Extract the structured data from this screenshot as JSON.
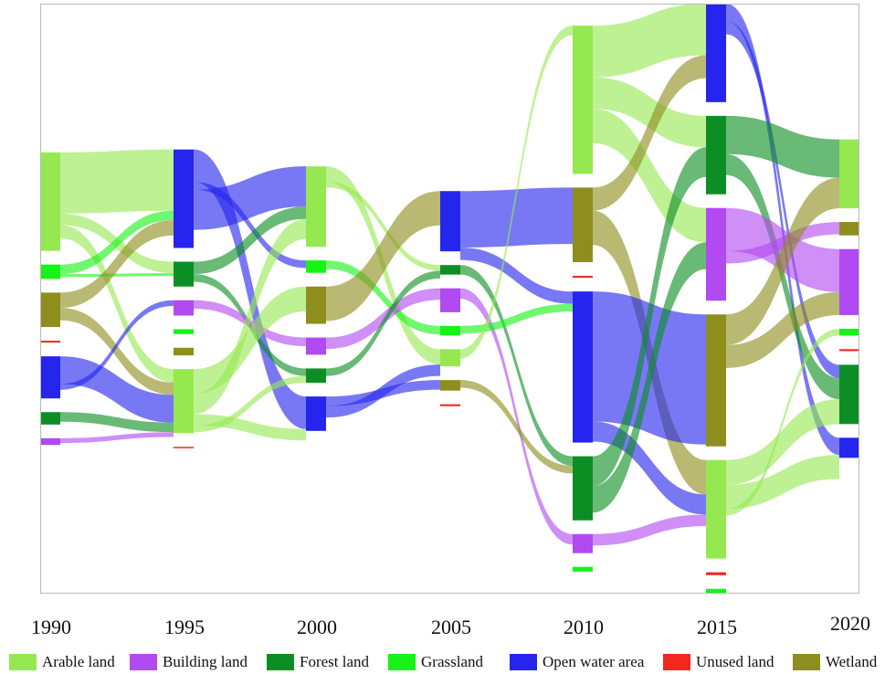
{
  "chart_data": {
    "type": "sankey",
    "years": [
      "1990",
      "1995",
      "2000",
      "2005",
      "2010",
      "2015",
      "2020"
    ],
    "categories": [
      {
        "key": "arable",
        "name": "Arable land",
        "color": "#96e850"
      },
      {
        "key": "building",
        "name": "Building land",
        "color": "#b14af0"
      },
      {
        "key": "forest",
        "name": "Forest land",
        "color": "#0d8e24"
      },
      {
        "key": "grass",
        "name": "Grassland",
        "color": "#17f317"
      },
      {
        "key": "water",
        "name": "Open water area",
        "color": "#2525ee"
      },
      {
        "key": "unused",
        "name": "Unused land",
        "color": "#f2271f"
      },
      {
        "key": "wetland",
        "name": "Wetland",
        "color": "#8e8e1e"
      }
    ],
    "nodes": [
      {
        "year": "1990",
        "cat": "arable",
        "value": 10.3
      },
      {
        "year": "1990",
        "cat": "grass",
        "value": 1.5
      },
      {
        "year": "1990",
        "cat": "wetland",
        "value": 3.6
      },
      {
        "year": "1990",
        "cat": "unused",
        "value": 0.2
      },
      {
        "year": "1990",
        "cat": "water",
        "value": 4.4
      },
      {
        "year": "1990",
        "cat": "forest",
        "value": 1.3
      },
      {
        "year": "1990",
        "cat": "building",
        "value": 0.7
      },
      {
        "year": "1995",
        "cat": "water",
        "value": 10.3
      },
      {
        "year": "1995",
        "cat": "forest",
        "value": 2.6
      },
      {
        "year": "1995",
        "cat": "building",
        "value": 1.6
      },
      {
        "year": "1995",
        "cat": "grass",
        "value": 0.5
      },
      {
        "year": "1995",
        "cat": "wetland",
        "value": 0.8
      },
      {
        "year": "1995",
        "cat": "arable",
        "value": 6.7
      },
      {
        "year": "1995",
        "cat": "unused",
        "value": 0.1
      },
      {
        "year": "2000",
        "cat": "arable",
        "value": 8.4
      },
      {
        "year": "2000",
        "cat": "grass",
        "value": 1.3
      },
      {
        "year": "2000",
        "cat": "wetland",
        "value": 3.9
      },
      {
        "year": "2000",
        "cat": "building",
        "value": 1.8
      },
      {
        "year": "2000",
        "cat": "forest",
        "value": 1.5
      },
      {
        "year": "2000",
        "cat": "water",
        "value": 3.6
      },
      {
        "year": "2005",
        "cat": "water",
        "value": 6.3
      },
      {
        "year": "2005",
        "cat": "forest",
        "value": 1.0
      },
      {
        "year": "2005",
        "cat": "building",
        "value": 2.5
      },
      {
        "year": "2005",
        "cat": "grass",
        "value": 1.0
      },
      {
        "year": "2005",
        "cat": "arable",
        "value": 1.8
      },
      {
        "year": "2005",
        "cat": "wetland",
        "value": 1.1
      },
      {
        "year": "2005",
        "cat": "unused",
        "value": 0.2
      },
      {
        "year": "2010",
        "cat": "arable",
        "value": 15.5
      },
      {
        "year": "2010",
        "cat": "wetland",
        "value": 7.8
      },
      {
        "year": "2010",
        "cat": "unused",
        "value": 0.2
      },
      {
        "year": "2010",
        "cat": "water",
        "value": 15.8
      },
      {
        "year": "2010",
        "cat": "forest",
        "value": 6.7
      },
      {
        "year": "2010",
        "cat": "building",
        "value": 2.0
      },
      {
        "year": "2010",
        "cat": "grass",
        "value": 0.5
      },
      {
        "year": "2015",
        "cat": "water",
        "value": 10.3
      },
      {
        "year": "2015",
        "cat": "forest",
        "value": 8.2
      },
      {
        "year": "2015",
        "cat": "building",
        "value": 9.7
      },
      {
        "year": "2015",
        "cat": "wetland",
        "value": 13.8
      },
      {
        "year": "2015",
        "cat": "arable",
        "value": 10.3
      },
      {
        "year": "2015",
        "cat": "unused",
        "value": 0.3
      },
      {
        "year": "2015",
        "cat": "grass",
        "value": 0.5
      },
      {
        "year": "2020",
        "cat": "arable",
        "value": 7.2
      },
      {
        "year": "2020",
        "cat": "wetland",
        "value": 1.4
      },
      {
        "year": "2020",
        "cat": "building",
        "value": 6.9
      },
      {
        "year": "2020",
        "cat": "grass",
        "value": 0.7
      },
      {
        "year": "2020",
        "cat": "unused",
        "value": 0.2
      },
      {
        "year": "2020",
        "cat": "forest",
        "value": 6.2
      },
      {
        "year": "2020",
        "cat": "water",
        "value": 2.1
      }
    ],
    "links": [
      {
        "from": [
          "1990",
          "arable"
        ],
        "to": [
          "1995",
          "water"
        ],
        "value": 6.4
      },
      {
        "from": [
          "1990",
          "arable"
        ],
        "to": [
          "1995",
          "forest"
        ],
        "value": 1.2
      },
      {
        "from": [
          "1990",
          "arable"
        ],
        "to": [
          "1995",
          "arable"
        ],
        "value": 1.4
      },
      {
        "from": [
          "1990",
          "grass"
        ],
        "to": [
          "1995",
          "water"
        ],
        "value": 1.0
      },
      {
        "from": [
          "1990",
          "grass"
        ],
        "to": [
          "1995",
          "forest"
        ],
        "value": 0.3
      },
      {
        "from": [
          "1990",
          "wetland"
        ],
        "to": [
          "1995",
          "water"
        ],
        "value": 1.6
      },
      {
        "from": [
          "1990",
          "wetland"
        ],
        "to": [
          "1995",
          "arable"
        ],
        "value": 1.3
      },
      {
        "from": [
          "1990",
          "water"
        ],
        "to": [
          "1995",
          "arable"
        ],
        "value": 2.9
      },
      {
        "from": [
          "1990",
          "water"
        ],
        "to": [
          "1995",
          "building"
        ],
        "value": 0.6
      },
      {
        "from": [
          "1990",
          "forest"
        ],
        "to": [
          "1995",
          "arable"
        ],
        "value": 1.0
      },
      {
        "from": [
          "1990",
          "building"
        ],
        "to": [
          "1995",
          "arable"
        ],
        "value": 0.5
      },
      {
        "from": [
          "1995",
          "water"
        ],
        "to": [
          "2000",
          "water"
        ],
        "value": 3.4
      },
      {
        "from": [
          "1995",
          "water"
        ],
        "to": [
          "2000",
          "grass"
        ],
        "value": 0.8
      },
      {
        "from": [
          "1995",
          "water"
        ],
        "to": [
          "2000",
          "arable"
        ],
        "value": 4.2
      },
      {
        "from": [
          "1995",
          "forest"
        ],
        "to": [
          "2000",
          "arable"
        ],
        "value": 1.3
      },
      {
        "from": [
          "1995",
          "forest"
        ],
        "to": [
          "2000",
          "forest"
        ],
        "value": 0.8
      },
      {
        "from": [
          "1995",
          "building"
        ],
        "to": [
          "2000",
          "building"
        ],
        "value": 0.9
      },
      {
        "from": [
          "1995",
          "arable"
        ],
        "to": [
          "2000",
          "wetland"
        ],
        "value": 2.6
      },
      {
        "from": [
          "1995",
          "arable"
        ],
        "to": [
          "2000",
          "arable"
        ],
        "value": 2.1
      },
      {
        "from": [
          "1995",
          "arable"
        ],
        "to": [
          "2000",
          "water"
        ],
        "value": 1.2
      },
      {
        "from": [
          "1995",
          "arable"
        ],
        "to": [
          "2000",
          "forest"
        ],
        "value": 0.7
      },
      {
        "from": [
          "2000",
          "arable"
        ],
        "to": [
          "2005",
          "arable"
        ],
        "value": 1.6
      },
      {
        "from": [
          "2000",
          "arable"
        ],
        "to": [
          "2005",
          "forest"
        ],
        "value": 0.6
      },
      {
        "from": [
          "2000",
          "grass"
        ],
        "to": [
          "2005",
          "grass"
        ],
        "value": 0.9
      },
      {
        "from": [
          "2000",
          "wetland"
        ],
        "to": [
          "2005",
          "water"
        ],
        "value": 3.6
      },
      {
        "from": [
          "2000",
          "building"
        ],
        "to": [
          "2005",
          "building"
        ],
        "value": 1.2
      },
      {
        "from": [
          "2000",
          "forest"
        ],
        "to": [
          "2005",
          "forest"
        ],
        "value": 0.8
      },
      {
        "from": [
          "2000",
          "water"
        ],
        "to": [
          "2005",
          "wetland"
        ],
        "value": 1.0
      },
      {
        "from": [
          "2000",
          "water"
        ],
        "to": [
          "2005",
          "arable"
        ],
        "value": 1.2
      },
      {
        "from": [
          "2005",
          "water"
        ],
        "to": [
          "2010",
          "wetland"
        ],
        "value": 5.9
      },
      {
        "from": [
          "2005",
          "water"
        ],
        "to": [
          "2010",
          "water"
        ],
        "value": 1.3
      },
      {
        "from": [
          "2005",
          "forest"
        ],
        "to": [
          "2010",
          "forest"
        ],
        "value": 1.0
      },
      {
        "from": [
          "2005",
          "building"
        ],
        "to": [
          "2010",
          "building"
        ],
        "value": 1.1
      },
      {
        "from": [
          "2005",
          "grass"
        ],
        "to": [
          "2010",
          "water"
        ],
        "value": 0.8
      },
      {
        "from": [
          "2005",
          "arable"
        ],
        "to": [
          "2010",
          "arable"
        ],
        "value": 1.0
      },
      {
        "from": [
          "2005",
          "wetland"
        ],
        "to": [
          "2010",
          "forest"
        ],
        "value": 0.8
      },
      {
        "from": [
          "2010",
          "arable"
        ],
        "to": [
          "2015",
          "water"
        ],
        "value": 5.4
      },
      {
        "from": [
          "2010",
          "arable"
        ],
        "to": [
          "2015",
          "forest"
        ],
        "value": 3.3
      },
      {
        "from": [
          "2010",
          "arable"
        ],
        "to": [
          "2015",
          "building"
        ],
        "value": 3.6
      },
      {
        "from": [
          "2010",
          "wetland"
        ],
        "to": [
          "2015",
          "water"
        ],
        "value": 2.4
      },
      {
        "from": [
          "2010",
          "wetland"
        ],
        "to": [
          "2015",
          "arable"
        ],
        "value": 3.6
      },
      {
        "from": [
          "2010",
          "water"
        ],
        "to": [
          "2015",
          "wetland"
        ],
        "value": 13.6
      },
      {
        "from": [
          "2010",
          "water"
        ],
        "to": [
          "2015",
          "arable"
        ],
        "value": 2.1
      },
      {
        "from": [
          "2010",
          "forest"
        ],
        "to": [
          "2015",
          "forest"
        ],
        "value": 3.1
      },
      {
        "from": [
          "2010",
          "forest"
        ],
        "to": [
          "2015",
          "building"
        ],
        "value": 2.8
      },
      {
        "from": [
          "2010",
          "building"
        ],
        "to": [
          "2015",
          "arable"
        ],
        "value": 1.2
      },
      {
        "from": [
          "2015",
          "water"
        ],
        "to": [
          "2020",
          "water"
        ],
        "value": 1.8
      },
      {
        "from": [
          "2015",
          "water"
        ],
        "to": [
          "2020",
          "forest"
        ],
        "value": 1.4
      },
      {
        "from": [
          "2015",
          "forest"
        ],
        "to": [
          "2020",
          "arable"
        ],
        "value": 4.0
      },
      {
        "from": [
          "2015",
          "forest"
        ],
        "to": [
          "2020",
          "forest"
        ],
        "value": 2.2
      },
      {
        "from": [
          "2015",
          "building"
        ],
        "to": [
          "2020",
          "building"
        ],
        "value": 4.5
      },
      {
        "from": [
          "2015",
          "building"
        ],
        "to": [
          "2020",
          "wetland"
        ],
        "value": 1.3
      },
      {
        "from": [
          "2015",
          "wetland"
        ],
        "to": [
          "2020",
          "arable"
        ],
        "value": 3.2
      },
      {
        "from": [
          "2015",
          "wetland"
        ],
        "to": [
          "2020",
          "building"
        ],
        "value": 2.4
      },
      {
        "from": [
          "2015",
          "arable"
        ],
        "to": [
          "2020",
          "forest"
        ],
        "value": 2.6
      },
      {
        "from": [
          "2015",
          "arable"
        ],
        "to": [
          "2020",
          "water"
        ],
        "value": 2.5
      },
      {
        "from": [
          "2015",
          "arable"
        ],
        "to": [
          "2020",
          "grass"
        ],
        "value": 0.7
      }
    ]
  }
}
